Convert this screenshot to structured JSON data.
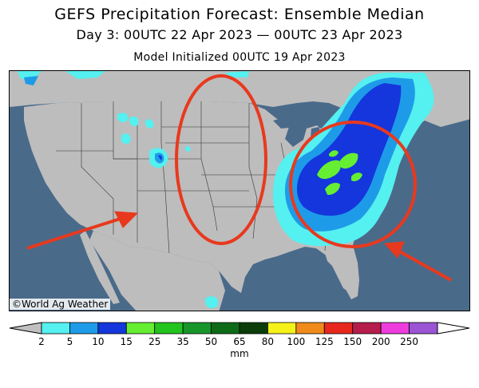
{
  "title": "GEFS Precipitation Forecast: Ensemble Median",
  "subtitle": "Day 3: 00UTC 22 Apr 2023 — 00UTC 23 Apr 2023",
  "init": "Model Initialized 00UTC 19 Apr 2023",
  "credit": "©World Ag Weather",
  "colorbar": {
    "unit": "mm",
    "ticks": [
      "2",
      "5",
      "10",
      "15",
      "25",
      "35",
      "50",
      "65",
      "80",
      "100",
      "125",
      "150",
      "200",
      "250"
    ],
    "colors": [
      "#55f0f0",
      "#1e9be8",
      "#1436dc",
      "#66ee33",
      "#22c41e",
      "#17962a",
      "#0d6b18",
      "#0a3d0a",
      "#f5f21a",
      "#f08a1a",
      "#e8281c",
      "#b51c4c",
      "#ee3cdc",
      "#9a54d4"
    ],
    "under_color": "#c0c0c0"
  },
  "map": {
    "land_color": "#bdbdbd",
    "water_color": "#4a6a8a",
    "annotation_color": "#e8391e"
  }
}
